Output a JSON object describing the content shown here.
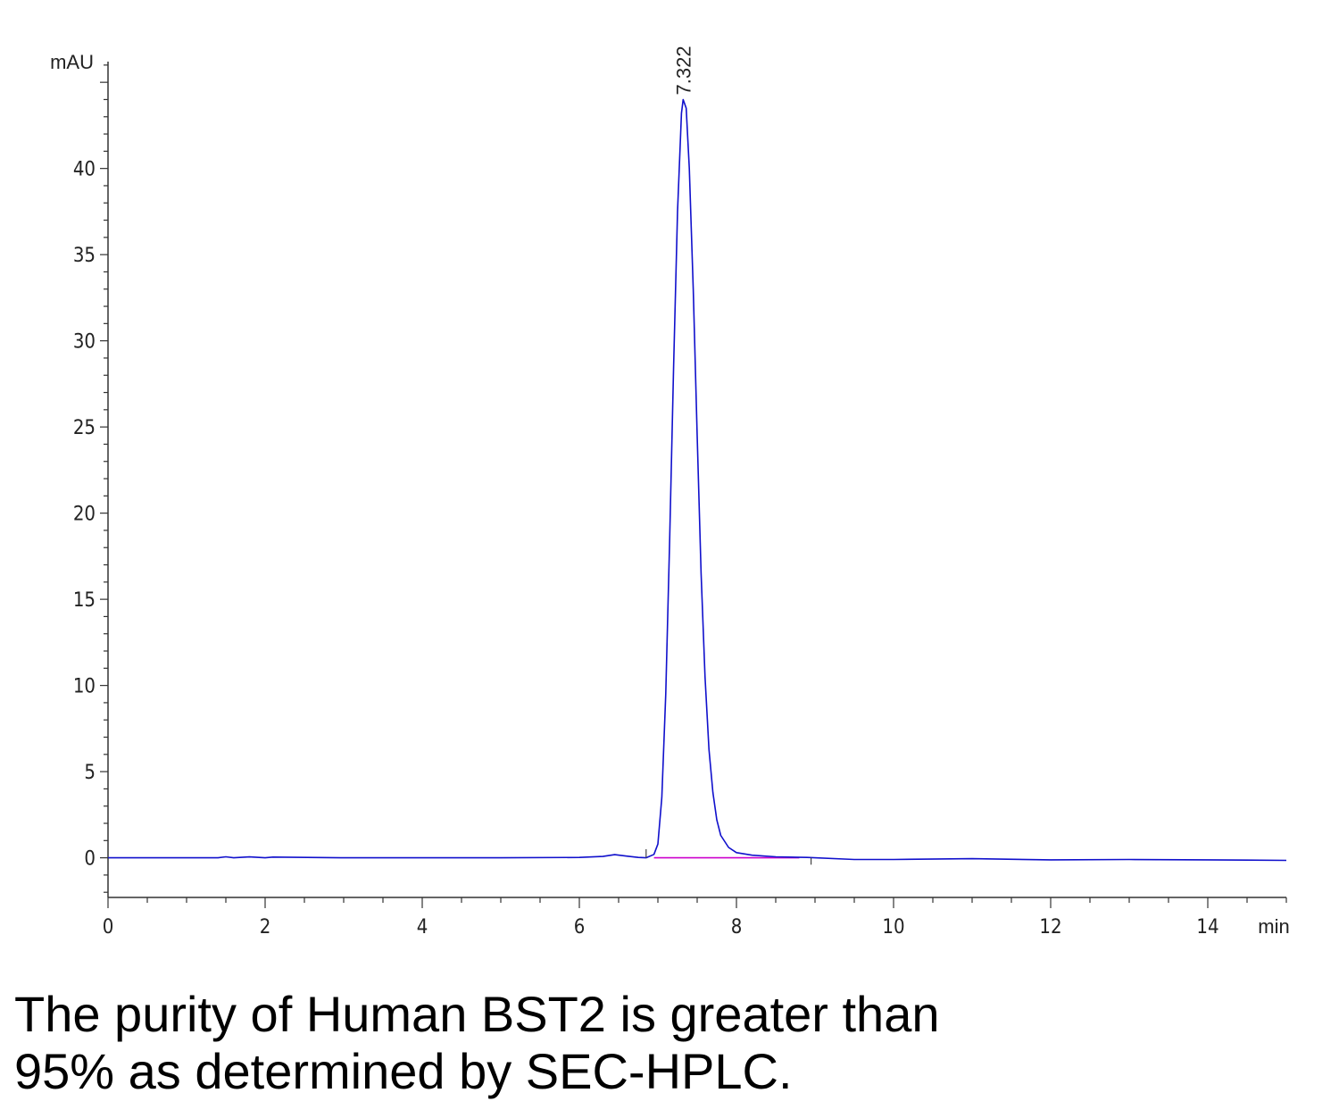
{
  "chart_data": {
    "type": "line",
    "xlabel": "min",
    "ylabel": "mAU",
    "xlim": [
      0,
      15
    ],
    "ylim": [
      -2.3,
      46.2
    ],
    "x_ticks": [
      0,
      2,
      4,
      6,
      8,
      10,
      12,
      14
    ],
    "y_ticks": [
      0,
      5,
      10,
      15,
      20,
      25,
      30,
      35,
      40
    ],
    "peak_label": "7.322",
    "peak": {
      "x": 7.322,
      "y": 44.0
    },
    "series": [
      {
        "color": "#1010cc",
        "x": [
          0,
          1.4,
          1.5,
          1.6,
          1.8,
          2.0,
          2.1,
          3.0,
          4.0,
          5.0,
          6.0,
          6.3,
          6.45,
          6.6,
          6.75,
          6.85,
          6.95,
          7.0,
          7.05,
          7.1,
          7.15,
          7.2,
          7.25,
          7.3,
          7.322,
          7.36,
          7.4,
          7.45,
          7.5,
          7.55,
          7.6,
          7.65,
          7.7,
          7.75,
          7.8,
          7.9,
          8.0,
          8.2,
          8.5,
          8.9,
          9.5,
          10.0,
          11.0,
          12.0,
          13.0,
          14.0,
          15.0
        ],
        "y": [
          0,
          0,
          0.06,
          0,
          0.05,
          0,
          0.04,
          0,
          0,
          0,
          0.02,
          0.08,
          0.18,
          0.1,
          0.02,
          0,
          0.2,
          0.8,
          3.5,
          9.5,
          18.5,
          28.5,
          37.5,
          43.2,
          44.0,
          43.5,
          40.0,
          33.0,
          24.5,
          16.5,
          10.5,
          6.3,
          3.8,
          2.2,
          1.3,
          0.6,
          0.3,
          0.15,
          0.06,
          0.02,
          -0.1,
          -0.1,
          -0.05,
          -0.12,
          -0.1,
          -0.12,
          -0.15
        ]
      },
      {
        "color": "#cc00cc",
        "x": [
          6.95,
          8.8
        ],
        "y": [
          0,
          0
        ]
      }
    ],
    "event_marks": [
      {
        "x": 6.85,
        "y_from": 0,
        "y_to": 0.5
      },
      {
        "x": 8.95,
        "y_from": 0,
        "y_to": -0.4
      }
    ]
  },
  "caption": {
    "line1": "The purity of Human BST2 is greater than",
    "line2": "95% as determined by SEC-HPLC."
  }
}
